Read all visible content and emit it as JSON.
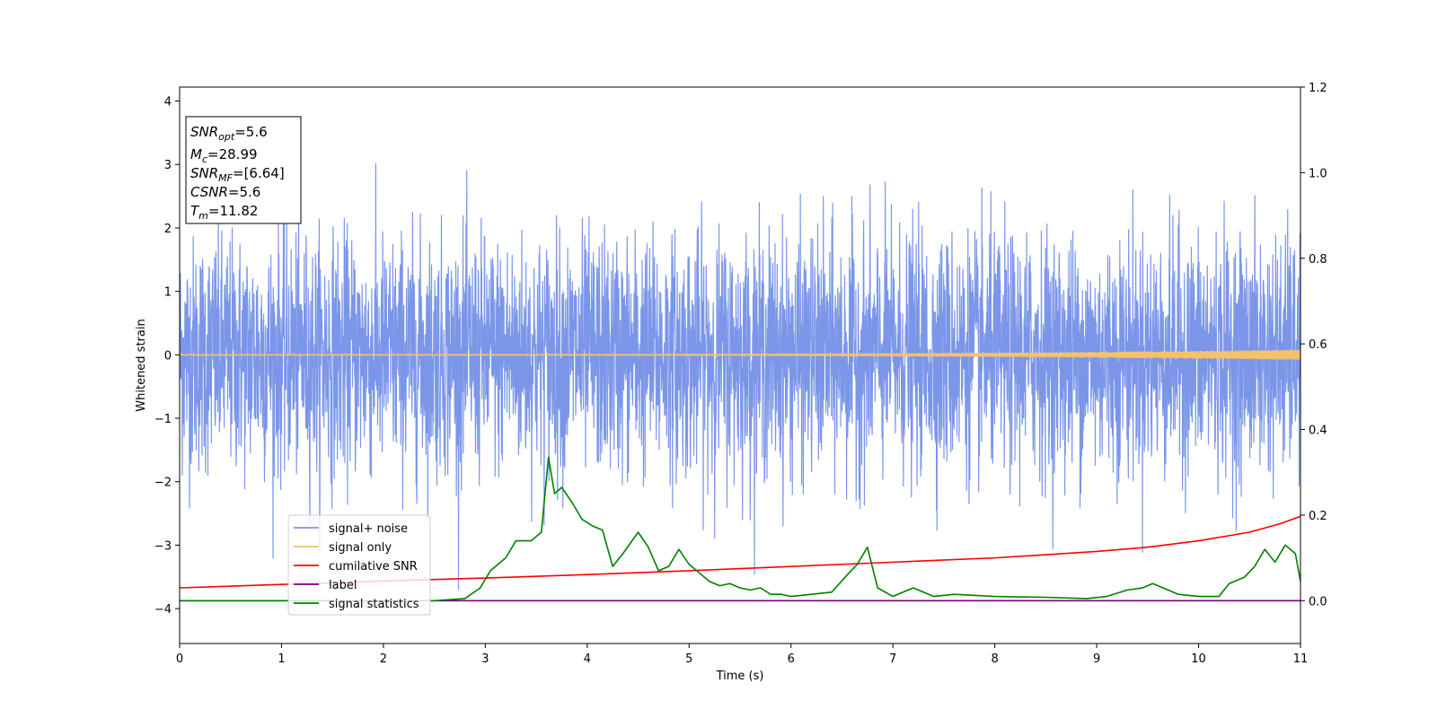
{
  "chart_data": {
    "type": "line",
    "xlabel": "Time (s)",
    "ylabel": "Whitened strain",
    "xlim": [
      0,
      11
    ],
    "ylim": [
      -4.55,
      4.22
    ],
    "y2lim": [
      -0.1,
      1.2
    ],
    "x_ticks": [
      "0",
      "1",
      "2",
      "3",
      "4",
      "5",
      "6",
      "7",
      "8",
      "9",
      "10",
      "11"
    ],
    "y_ticks": [
      "−4",
      "−3",
      "−2",
      "−1",
      "0",
      "1",
      "2",
      "3",
      "4"
    ],
    "y2_ticks": [
      "0.0",
      "0.2",
      "0.4",
      "0.6",
      "0.8",
      "1.0",
      "1.2"
    ],
    "grid": false,
    "legend_position": "lower-left",
    "info_box": {
      "lines": [
        {
          "sym": "SNR",
          "sub": "opt",
          "value": "=5.6"
        },
        {
          "sym": "M",
          "sub": "c",
          "value": "=28.99"
        },
        {
          "sym": "SNR",
          "sub": "MF",
          "value": "=[6.64]"
        },
        {
          "sym": "CSNR",
          "sub": "",
          "value": "=5.6"
        },
        {
          "sym": "T",
          "sub": "m",
          "value": "=11.82"
        }
      ]
    },
    "series": [
      {
        "name": "signal+ noise",
        "color": "#7b96e8",
        "axis": "left",
        "kind": "noise",
        "std": 1.0,
        "mean": 0.0
      },
      {
        "name": "signal only",
        "color": "#f5c26b",
        "axis": "left",
        "kind": "chirp"
      },
      {
        "name": "cumilative SNR",
        "color": "#ff0000",
        "axis": "right",
        "x": [
          0,
          1,
          2,
          3,
          4,
          5,
          6,
          7,
          8,
          9,
          9.5,
          10,
          10.5,
          10.8,
          11
        ],
        "y": [
          0.03,
          0.038,
          0.046,
          0.053,
          0.061,
          0.07,
          0.08,
          0.09,
          0.1,
          0.115,
          0.125,
          0.14,
          0.16,
          0.18,
          0.197
        ]
      },
      {
        "name": "label",
        "color": "#800080",
        "axis": "right",
        "x": [
          0,
          11
        ],
        "y": [
          0.0,
          0.0
        ]
      },
      {
        "name": "signal statistics",
        "color": "#008000",
        "axis": "right",
        "x": [
          0,
          2.5,
          2.8,
          2.95,
          3.05,
          3.2,
          3.3,
          3.45,
          3.55,
          3.62,
          3.68,
          3.75,
          3.85,
          3.95,
          4.05,
          4.15,
          4.25,
          4.35,
          4.5,
          4.6,
          4.7,
          4.8,
          4.9,
          5.0,
          5.1,
          5.2,
          5.3,
          5.4,
          5.5,
          5.6,
          5.7,
          5.8,
          5.9,
          6.0,
          6.2,
          6.4,
          6.55,
          6.65,
          6.75,
          6.85,
          7.0,
          7.1,
          7.2,
          7.4,
          7.6,
          8.0,
          8.5,
          8.9,
          9.1,
          9.3,
          9.45,
          9.55,
          9.7,
          9.8,
          10.0,
          10.2,
          10.3,
          10.45,
          10.55,
          10.65,
          10.75,
          10.85,
          10.95,
          11.0
        ],
        "y": [
          0.0,
          0.0,
          0.005,
          0.03,
          0.07,
          0.1,
          0.14,
          0.14,
          0.16,
          0.335,
          0.25,
          0.265,
          0.23,
          0.19,
          0.175,
          0.165,
          0.08,
          0.11,
          0.16,
          0.125,
          0.07,
          0.08,
          0.12,
          0.085,
          0.065,
          0.045,
          0.035,
          0.04,
          0.03,
          0.025,
          0.03,
          0.015,
          0.015,
          0.01,
          0.015,
          0.02,
          0.06,
          0.085,
          0.125,
          0.03,
          0.01,
          0.02,
          0.03,
          0.01,
          0.015,
          0.01,
          0.008,
          0.005,
          0.01,
          0.025,
          0.03,
          0.04,
          0.025,
          0.015,
          0.01,
          0.01,
          0.04,
          0.055,
          0.08,
          0.12,
          0.09,
          0.13,
          0.11,
          0.045
        ]
      }
    ]
  }
}
